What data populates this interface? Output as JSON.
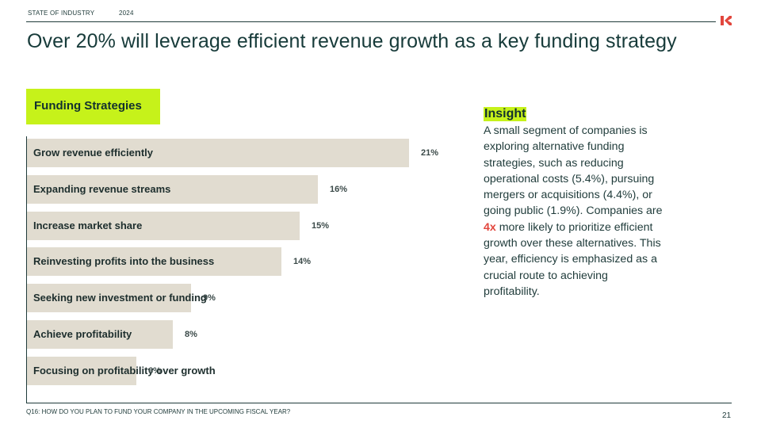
{
  "header": {
    "section_label": "STATE OF INDUSTRY",
    "year": "2024"
  },
  "title": "Over 20% will leverage efficient revenue growth as a key funding strategy",
  "panel_tag": "Funding Strategies",
  "chart_data": {
    "type": "bar",
    "orientation": "horizontal",
    "title": "Funding Strategies",
    "categories": [
      "Grow revenue efficiently",
      "Expanding revenue streams",
      "Increase market share",
      "Reinvesting profits into the business",
      "Seeking new investment or funding",
      "Achieve profitability",
      "Focusing on profitability over growth"
    ],
    "values": [
      21,
      16,
      15,
      14,
      9,
      8,
      6
    ],
    "value_labels": [
      "21%",
      "16%",
      "15%",
      "14%",
      "9%",
      "8%",
      "6%"
    ],
    "unit": "%",
    "xlim": [
      0,
      21
    ],
    "grid": false,
    "bar_color": "#e1dcd0"
  },
  "insight": {
    "heading": "Insight",
    "text_before": "A small segment of companies is exploring alternative funding strategies, such as reducing operational costs (5.4%), pursuing mergers or acquisitions (4.4%), or going public (1.9%). Companies are ",
    "highlight": "4x",
    "text_after": " more likely to prioritize efficient growth over these alternatives. This year, efficiency is emphasized as a crucial route to achieving profitability."
  },
  "footnote": "Q16: HOW DO YOU PLAN TO FUND YOUR COMPANY IN THE UPCOMING FISCAL YEAR?",
  "page_number": "21",
  "colors": {
    "accent": "#c6f21a",
    "highlight": "#e2463d",
    "text": "#1f3b3a",
    "bar": "#e1dcd0"
  },
  "icons": {
    "logo": "brand-logo-icon"
  }
}
